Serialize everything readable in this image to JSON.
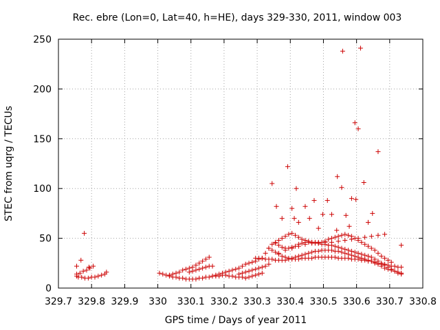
{
  "chart_data": {
    "type": "scatter",
    "title": "Rec. ebre (Lon=0, Lat=40, h=HE), days 329-330, 2011, window 003",
    "xlabel": "GPS time / Days of year 2011",
    "ylabel": "STEC from uqrg / TECUs",
    "xlim": [
      329.7,
      330.8
    ],
    "ylim": [
      0,
      250
    ],
    "xticks": [
      "329.7",
      "329.8",
      "329.9",
      "330",
      "330.1",
      "330.2",
      "330.3",
      "330.4",
      "330.5",
      "330.6",
      "330.7",
      "330.8"
    ],
    "yticks": [
      "0",
      "50",
      "100",
      "150",
      "200",
      "250"
    ],
    "grid": true,
    "marker": "+",
    "color": "#cc0000",
    "series": [
      {
        "x": [
          329.755,
          329.76,
          329.77,
          329.78,
          329.79,
          329.8,
          329.81,
          329.82,
          329.83,
          329.84,
          329.755,
          329.765,
          329.775,
          329.785,
          329.795,
          329.805,
          329.755,
          329.768,
          329.778,
          329.792,
          329.845,
          330.005,
          330.015,
          330.025,
          330.035,
          330.045,
          330.055,
          330.065,
          330.075,
          330.085,
          330.095,
          330.105,
          330.115,
          330.125,
          330.135,
          330.145,
          330.155,
          330.165,
          330.175,
          330.185,
          330.195,
          330.205,
          330.215,
          330.225,
          330.235,
          330.245,
          330.255,
          330.265,
          330.275,
          330.285,
          330.295,
          330.305,
          330.315,
          330.035,
          330.045,
          330.055,
          330.065,
          330.075,
          330.085,
          330.095,
          330.105,
          330.115,
          330.125,
          330.135,
          330.145,
          330.155,
          330.165,
          330.175,
          330.185,
          330.195,
          330.205,
          330.215,
          330.225,
          330.235,
          330.245,
          330.255,
          330.265,
          330.275,
          330.285,
          330.295,
          330.305,
          330.095,
          330.105,
          330.115,
          330.125,
          330.135,
          330.145,
          330.155,
          330.165,
          330.245,
          330.255,
          330.265,
          330.275,
          330.285,
          330.295,
          330.305,
          330.315,
          330.325,
          330.335,
          330.295,
          330.305,
          330.315,
          330.325,
          330.335,
          330.345,
          330.355,
          330.365,
          330.375,
          330.385,
          330.395,
          330.405,
          330.415,
          330.425,
          330.435,
          330.445,
          330.455,
          330.465,
          330.475,
          330.485,
          330.495,
          330.505,
          330.515,
          330.525,
          330.535,
          330.545,
          330.555,
          330.565,
          330.575,
          330.585,
          330.595,
          330.605,
          330.615,
          330.625,
          330.635,
          330.645,
          330.655,
          330.665,
          330.675,
          330.685,
          330.695,
          330.705,
          330.715,
          330.725,
          330.735,
          330.315,
          330.325,
          330.335,
          330.345,
          330.355,
          330.365,
          330.375,
          330.385,
          330.395,
          330.405,
          330.415,
          330.425,
          330.435,
          330.445,
          330.455,
          330.465,
          330.475,
          330.485,
          330.495,
          330.505,
          330.515,
          330.525,
          330.535,
          330.545,
          330.555,
          330.565,
          330.575,
          330.585,
          330.595,
          330.605,
          330.615,
          330.625,
          330.635,
          330.645,
          330.655,
          330.665,
          330.675,
          330.685,
          330.695,
          330.705,
          330.715,
          330.725,
          330.735,
          330.335,
          330.345,
          330.355,
          330.365,
          330.375,
          330.385,
          330.395,
          330.405,
          330.415,
          330.425,
          330.435,
          330.445,
          330.455,
          330.465,
          330.475,
          330.485,
          330.495,
          330.505,
          330.515,
          330.525,
          330.535,
          330.545,
          330.555,
          330.565,
          330.575,
          330.585,
          330.595,
          330.605,
          330.615,
          330.625,
          330.635,
          330.645,
          330.655,
          330.665,
          330.675,
          330.685,
          330.695,
          330.705,
          330.715,
          330.725,
          330.735,
          330.355,
          330.365,
          330.375,
          330.385,
          330.395,
          330.405,
          330.415,
          330.425,
          330.435,
          330.445,
          330.455,
          330.465,
          330.475,
          330.485,
          330.495,
          330.505,
          330.515,
          330.525,
          330.535,
          330.545,
          330.555,
          330.565,
          330.575,
          330.585,
          330.595,
          330.605,
          330.615,
          330.625,
          330.635,
          330.645,
          330.655,
          330.665,
          330.675,
          330.685,
          330.695,
          330.705,
          330.365,
          330.385,
          330.405,
          330.425,
          330.445,
          330.465,
          330.485,
          330.505,
          330.525,
          330.545,
          330.565,
          330.585,
          330.605,
          330.625,
          330.645,
          330.665,
          330.685,
          330.345,
          330.358,
          330.375,
          330.392,
          330.405,
          330.412,
          330.418,
          330.425,
          330.445,
          330.458,
          330.472,
          330.485,
          330.498,
          330.512,
          330.525,
          330.54,
          330.542,
          330.555,
          330.558,
          330.568,
          330.578,
          330.585,
          330.595,
          330.598,
          330.605,
          330.612,
          330.622,
          330.635,
          330.648,
          330.665,
          330.735
        ],
        "y": [
          12,
          11,
          11,
          10,
          10,
          11,
          11,
          12,
          13,
          14,
          14,
          15,
          17,
          18,
          20,
          22,
          22,
          28,
          55,
          21,
          16,
          15,
          14,
          13,
          12,
          11,
          11,
          10,
          10,
          9,
          9,
          9,
          9,
          10,
          10,
          11,
          11,
          12,
          12,
          12,
          13,
          13,
          12,
          12,
          11,
          11,
          11,
          10,
          11,
          12,
          13,
          14,
          15,
          13,
          14,
          15,
          16,
          18,
          19,
          20,
          21,
          23,
          25,
          27,
          29,
          31,
          12,
          13,
          14,
          15,
          16,
          17,
          18,
          19,
          20,
          22,
          24,
          25,
          26,
          27,
          29,
          16,
          17,
          18,
          19,
          20,
          21,
          22,
          22,
          14,
          15,
          16,
          17,
          18,
          19,
          20,
          21,
          22,
          24,
          30,
          30,
          30,
          29,
          29,
          29,
          28,
          28,
          28,
          28,
          29,
          29,
          29,
          29,
          30,
          30,
          30,
          30,
          31,
          31,
          31,
          31,
          31,
          31,
          31,
          30,
          30,
          30,
          30,
          29,
          29,
          29,
          28,
          28,
          27,
          27,
          26,
          25,
          24,
          24,
          23,
          22,
          22,
          21,
          21,
          30,
          35,
          40,
          38,
          36,
          34,
          32,
          31,
          30,
          30,
          31,
          32,
          33,
          34,
          35,
          36,
          37,
          37,
          38,
          38,
          38,
          38,
          37,
          37,
          36,
          35,
          34,
          33,
          32,
          31,
          30,
          29,
          28,
          27,
          25,
          24,
          22,
          20,
          19,
          18,
          17,
          16,
          15,
          40,
          44,
          46,
          43,
          41,
          40,
          40,
          41,
          42,
          44,
          45,
          46,
          46,
          46,
          46,
          45,
          44,
          44,
          43,
          43,
          42,
          41,
          40,
          39,
          38,
          37,
          36,
          35,
          34,
          33,
          32,
          31,
          29,
          27,
          25,
          23,
          21,
          19,
          17,
          15,
          14,
          45,
          48,
          50,
          52,
          54,
          55,
          53,
          51,
          49,
          48,
          47,
          46,
          45,
          45,
          46,
          47,
          49,
          50,
          51,
          52,
          53,
          54,
          53,
          52,
          50,
          48,
          46,
          44,
          42,
          40,
          38,
          35,
          32,
          30,
          28,
          26,
          35,
          38,
          40,
          42,
          44,
          45,
          46,
          46,
          46,
          47,
          48,
          49,
          50,
          51,
          52,
          53,
          54,
          105,
          82,
          70,
          122,
          80,
          70,
          100,
          66,
          82,
          70,
          88,
          60,
          74,
          88,
          74,
          58,
          112,
          101,
          238,
          73,
          62,
          90,
          166,
          89,
          160,
          241,
          106,
          66,
          75,
          137,
          43
        ],
        "name": ""
      }
    ]
  }
}
